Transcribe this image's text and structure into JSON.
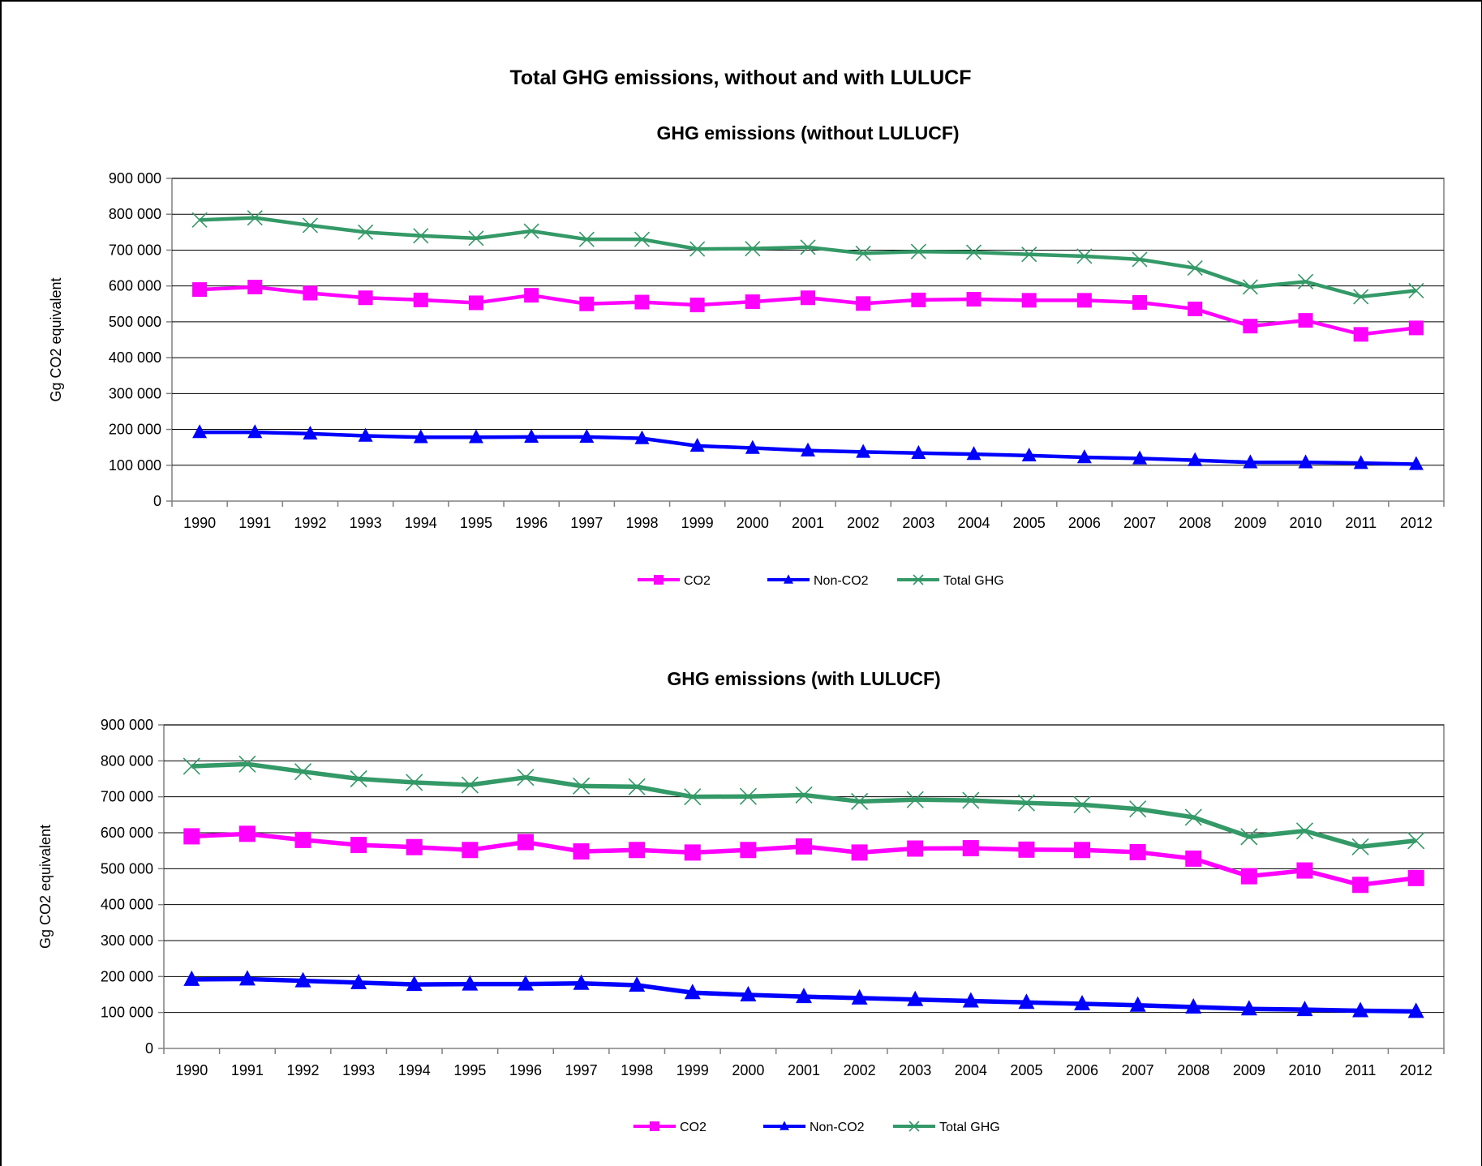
{
  "page_title": "Total GHG emissions, without and with LULUCF",
  "chart_data": [
    {
      "type": "line",
      "title": "GHG emissions (without LULUCF)",
      "xlabel": "",
      "ylabel": "Gg CO2 equivalent",
      "ylim": [
        0,
        900000
      ],
      "yticks": [
        0,
        100000,
        200000,
        300000,
        400000,
        500000,
        600000,
        700000,
        800000,
        900000
      ],
      "ytick_labels": [
        "0",
        "100 000",
        "200 000",
        "300 000",
        "400 000",
        "500 000",
        "600 000",
        "700 000",
        "800 000",
        "900 000"
      ],
      "grid": "horizontal",
      "legend": "bottom-center",
      "categories": [
        "1990",
        "1991",
        "1992",
        "1993",
        "1994",
        "1995",
        "1996",
        "1997",
        "1998",
        "1999",
        "2000",
        "2001",
        "2002",
        "2003",
        "2004",
        "2005",
        "2006",
        "2007",
        "2008",
        "2009",
        "2010",
        "2011",
        "2012"
      ],
      "series": [
        {
          "name": "CO2",
          "color": "#ff00ff",
          "marker": "square",
          "values": [
            590000,
            597000,
            580000,
            567000,
            561000,
            553000,
            574000,
            550000,
            555000,
            547000,
            556000,
            567000,
            551000,
            561000,
            563000,
            560000,
            560000,
            554000,
            536000,
            488000,
            504000,
            465000,
            483000
          ]
        },
        {
          "name": "Non-CO2",
          "color": "#0000ff",
          "marker": "triangle",
          "values": [
            192000,
            192000,
            188000,
            182000,
            178000,
            178000,
            179000,
            179000,
            175000,
            154000,
            148000,
            141000,
            137000,
            134000,
            131000,
            127000,
            122000,
            119000,
            114000,
            108000,
            108000,
            106000,
            103000
          ]
        },
        {
          "name": "Total GHG",
          "color": "#339966",
          "marker": "x",
          "values": [
            784000,
            790000,
            769000,
            750000,
            740000,
            733000,
            753000,
            730000,
            730000,
            703000,
            704000,
            708000,
            691000,
            696000,
            694000,
            688000,
            683000,
            674000,
            650000,
            597000,
            612000,
            570000,
            587000
          ]
        }
      ]
    },
    {
      "type": "line",
      "title": "GHG emissions (with LULUCF)",
      "xlabel": "",
      "ylabel": "Gg CO2 equivalent",
      "ylim": [
        0,
        900000
      ],
      "yticks": [
        0,
        100000,
        200000,
        300000,
        400000,
        500000,
        600000,
        700000,
        800000,
        900000
      ],
      "ytick_labels": [
        "0",
        "100 000",
        "200 000",
        "300 000",
        "400 000",
        "500 000",
        "600 000",
        "700 000",
        "800 000",
        "900 000"
      ],
      "grid": "horizontal",
      "legend": "bottom-center",
      "categories": [
        "1990",
        "1991",
        "1992",
        "1993",
        "1994",
        "1995",
        "1996",
        "1997",
        "1998",
        "1999",
        "2000",
        "2001",
        "2002",
        "2003",
        "2004",
        "2005",
        "2006",
        "2007",
        "2008",
        "2009",
        "2010",
        "2011",
        "2012"
      ],
      "series": [
        {
          "name": "CO2",
          "color": "#ff00ff",
          "marker": "square",
          "values": [
            590000,
            597000,
            580000,
            566000,
            560000,
            552000,
            574000,
            548000,
            552000,
            545000,
            552000,
            562000,
            545000,
            556000,
            557000,
            553000,
            552000,
            546000,
            528000,
            479000,
            495000,
            455000,
            474000
          ]
        },
        {
          "name": "Non-CO2",
          "color": "#0000ff",
          "marker": "triangle",
          "values": [
            192000,
            193000,
            188000,
            183000,
            178000,
            179000,
            179000,
            181000,
            176000,
            155000,
            149000,
            144000,
            140000,
            136000,
            132000,
            128000,
            124000,
            120000,
            115000,
            110000,
            108000,
            105000,
            103000
          ]
        },
        {
          "name": "Total GHG",
          "color": "#339966",
          "marker": "x",
          "values": [
            785000,
            791000,
            770000,
            750000,
            740000,
            733000,
            754000,
            730000,
            728000,
            700000,
            701000,
            705000,
            687000,
            692000,
            690000,
            683000,
            678000,
            666000,
            643000,
            589000,
            605000,
            561000,
            578000
          ]
        }
      ]
    }
  ]
}
